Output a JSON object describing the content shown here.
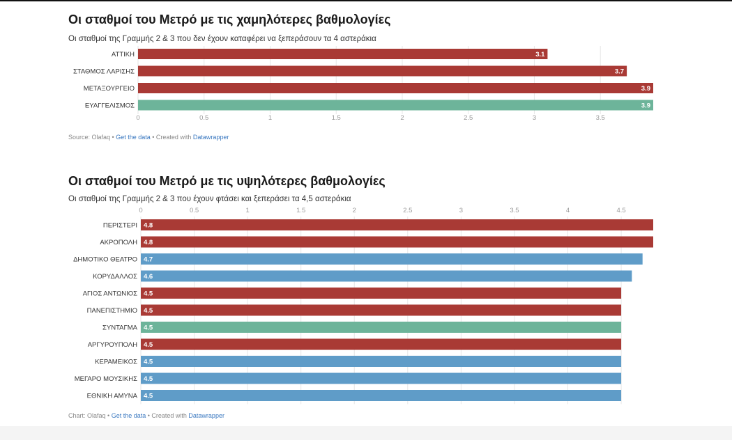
{
  "colors": {
    "red": "#a93a35",
    "green": "#6db49a",
    "blue": "#5f9cc8",
    "grid": "#e6e6e6",
    "tick": "#9a9a9a",
    "label": "#333333"
  },
  "chart_data": [
    {
      "type": "bar",
      "orientation": "horizontal",
      "title": "Οι σταθμοί του Μετρό με τις χαμηλότερες βαθμολογίες",
      "subtitle": "Οι σταθμοί της Γραμμής 2 & 3 που δεν έχουν καταφέρει να ξεπεράσουν τα 4 αστεράκια",
      "categories": [
        "ΑΤΤΙΚΗ",
        "ΣΤΑΘΜΟΣ ΛΑΡΙΣΗΣ",
        "ΜΕΤΑΞΟΥΡΓΕΙΟ",
        "ΕΥΑΓΓΕΛΙΣΜΟΣ"
      ],
      "values": [
        3.1,
        3.7,
        3.9,
        3.9
      ],
      "value_labels": [
        "3.1",
        "3.7",
        "3.9",
        "3.9"
      ],
      "bar_colors": [
        "red",
        "red",
        "red",
        "green"
      ],
      "xlim": [
        0,
        3.9
      ],
      "ticks": [
        0,
        0.5,
        1,
        1.5,
        2,
        2.5,
        3,
        3.5
      ],
      "tick_labels": [
        "0",
        "0.5",
        "1",
        "1.5",
        "2",
        "2.5",
        "3",
        "3.5"
      ],
      "axis_position": "bottom",
      "label_position": "inside-end",
      "grid": true,
      "footer": {
        "prefix": "Source: Olafaq • ",
        "data_link": "Get the data",
        "middle": " • Created with ",
        "tool": "Datawrapper"
      }
    },
    {
      "type": "bar",
      "orientation": "horizontal",
      "title": "Οι σταθμοί του Μετρό με τις υψηλότερες βαθμολογίες",
      "subtitle": "Οι σταθμοί της Γραμμής 2 & 3 που έχουν φτάσει και ξεπεράσει τα 4,5 αστεράκια",
      "categories": [
        "ΠΕΡΙΣΤΕΡΙ",
        "ΑΚΡΟΠΟΛΗ",
        "ΔΗΜΟΤΙΚΟ ΘΕΑΤΡΟ",
        "ΚΟΡΥΔΑΛΛΟΣ",
        "ΑΓΙΟΣ ΑΝΤΩΝΙΟΣ",
        "ΠΑΝΕΠΙΣΤΗΜΙΟ",
        "ΣΥΝΤΑΓΜΑ",
        "ΑΡΓΥΡΟΥΠΟΛΗ",
        "ΚΕΡΑΜΕΙΚΟΣ",
        "ΜΕΓΑΡΟ ΜΟΥΣΙΚΗΣ",
        "ΕΘΝΙΚΗ ΑΜΥΝΑ"
      ],
      "values": [
        4.8,
        4.8,
        4.7,
        4.6,
        4.5,
        4.5,
        4.5,
        4.5,
        4.5,
        4.5,
        4.5
      ],
      "value_labels": [
        "4.8",
        "4.8",
        "4.7",
        "4.6",
        "4.5",
        "4.5",
        "4.5",
        "4.5",
        "4.5",
        "4.5",
        "4.5"
      ],
      "bar_colors": [
        "red",
        "red",
        "blue",
        "blue",
        "red",
        "red",
        "green",
        "red",
        "blue",
        "blue",
        "blue"
      ],
      "xlim": [
        0,
        4.8
      ],
      "ticks": [
        0,
        0.5,
        1,
        1.5,
        2,
        2.5,
        3,
        3.5,
        4,
        4.5
      ],
      "tick_labels": [
        "0",
        "0.5",
        "1",
        "1.5",
        "2",
        "2.5",
        "3",
        "3.5",
        "4",
        "4.5"
      ],
      "axis_position": "top",
      "label_position": "inside-start",
      "grid": true,
      "footer": {
        "prefix": "Chart: Olafaq • ",
        "data_link": "Get the data",
        "middle": " • Created with ",
        "tool": "Datawrapper"
      }
    }
  ]
}
